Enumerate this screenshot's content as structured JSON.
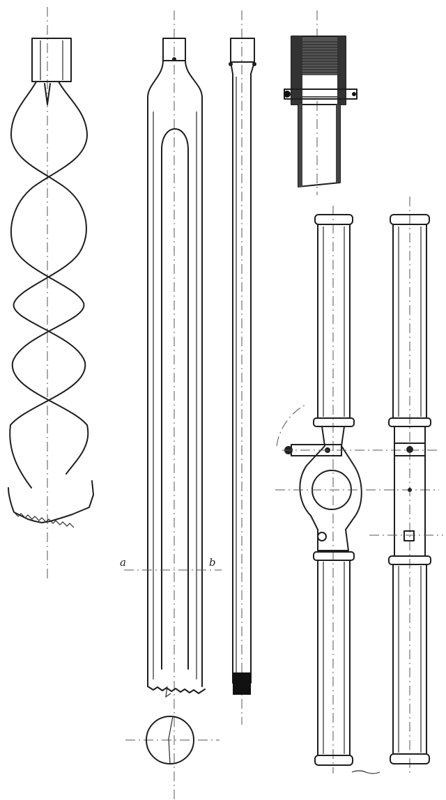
{
  "drawing": {
    "section_labels": {
      "left": "a",
      "right": "b"
    },
    "colors": {
      "ink": "#1e1e1e",
      "paper": "#ffffff",
      "centerline": "#555555"
    },
    "components": [
      "spiral-auger",
      "open-tube-auger",
      "extension-rod",
      "socket-coupling",
      "handle-with-clamp",
      "handle-side-view",
      "tube-cross-section"
    ]
  }
}
